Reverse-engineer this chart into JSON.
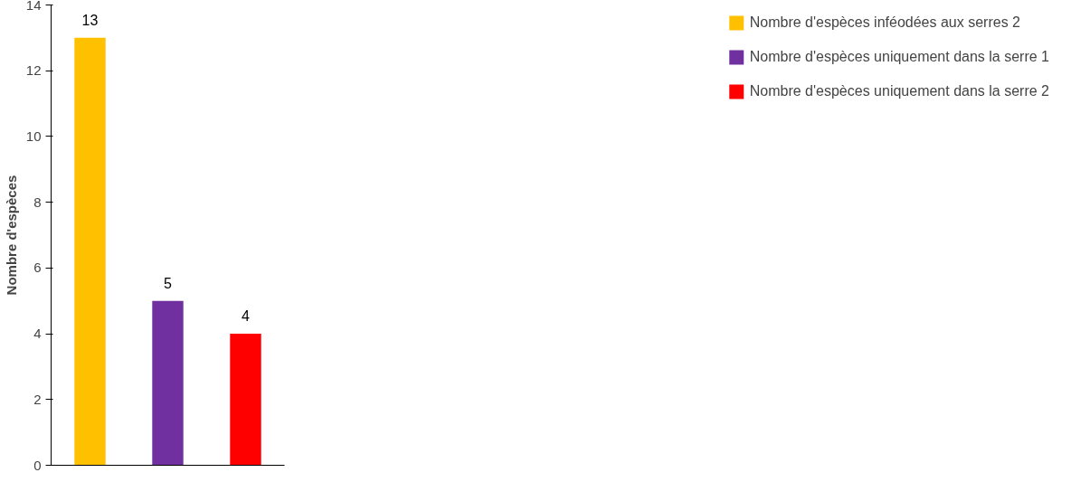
{
  "chart_data": {
    "type": "bar",
    "ylabel": "Nombre d'espèces",
    "categories": [
      null,
      null,
      null
    ],
    "series": [
      {
        "name": "Nombre d'espèces inféodées aux serres 2",
        "color": "#ffc000",
        "values": [
          13,
          null,
          null
        ]
      },
      {
        "name": "Nombre d'espèces uniquement dans la serre 1",
        "color": "#7030a0",
        "values": [
          null,
          5,
          null
        ]
      },
      {
        "name": "Nombre d'espèces uniquement dans la serre 2",
        "color": "#ff0000",
        "values": [
          null,
          null,
          4
        ]
      }
    ],
    "ylim": [
      0,
      14
    ],
    "yticks": [
      0,
      2,
      4,
      6,
      8,
      10,
      12,
      14
    ],
    "data_labels": true,
    "legend": "right",
    "tick_labels": "y"
  }
}
